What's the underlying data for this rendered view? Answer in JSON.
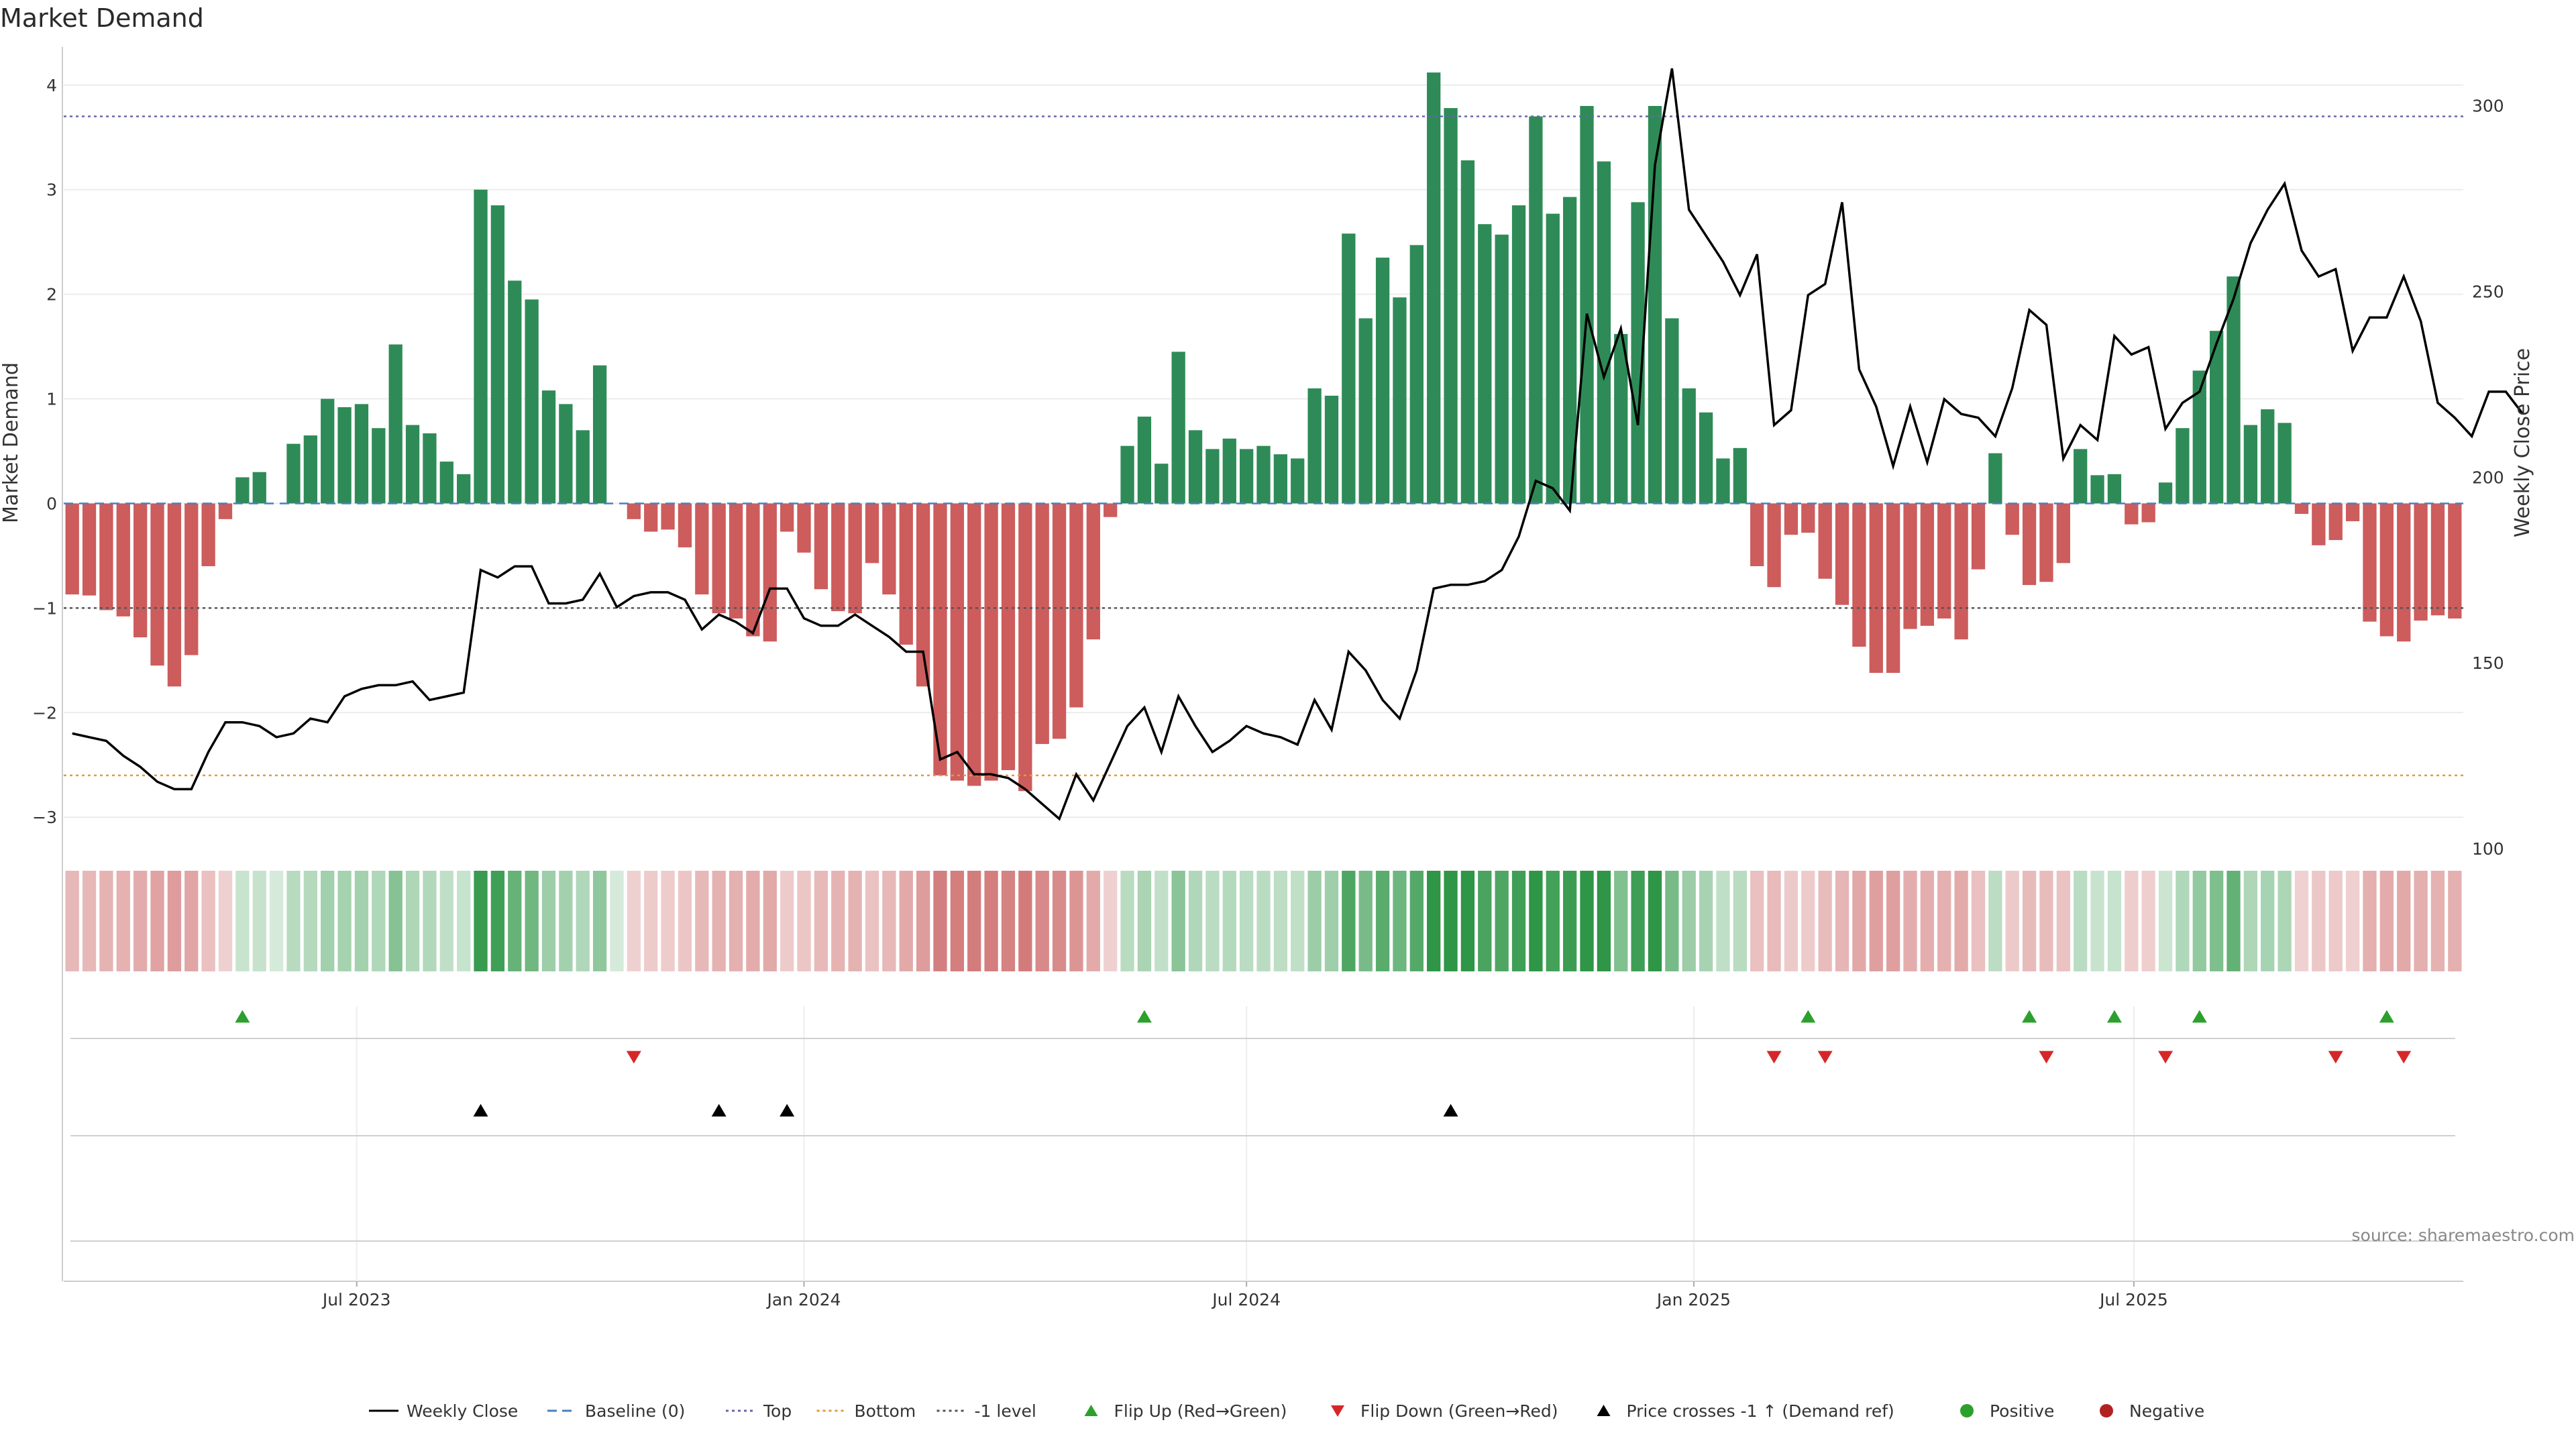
{
  "chart_data": {
    "type": "bar",
    "title": "Market Demand",
    "ylabel": "Market Demand",
    "y2label": "Weekly Close Price",
    "ylim": [
      -3.3,
      4.3
    ],
    "y2lim": [
      100,
      314
    ],
    "yticks": [
      "4",
      "3",
      "2",
      "1",
      "0",
      "−1",
      "−2",
      "−3"
    ],
    "yticks_values": [
      4,
      3,
      2,
      1,
      0,
      -1,
      -2,
      -3
    ],
    "y2ticks": [
      "300",
      "250",
      "200",
      "150",
      "100"
    ],
    "y2ticks_values": [
      300,
      250,
      200,
      150,
      100
    ],
    "x_start": "2023-03-06",
    "x_step_days": 7,
    "xticks": [
      {
        "label": "Jul 2023",
        "date": "2023-07-01"
      },
      {
        "label": "Jan 2024",
        "date": "2024-01-01"
      },
      {
        "label": "Jul 2024",
        "date": "2024-07-01"
      },
      {
        "label": "Jan 2025",
        "date": "2025-01-01"
      },
      {
        "label": "Jul 2025",
        "date": "2025-07-01"
      }
    ],
    "reference_lines": [
      {
        "name": "Top",
        "value": 3.7
      },
      {
        "name": "Bottom",
        "value": -2.6
      },
      {
        "name": "-1 level",
        "value": -1
      },
      {
        "name": "Baseline (0)",
        "value": 0
      }
    ],
    "demand": [
      -0.87,
      -0.88,
      -1.02,
      -1.08,
      -1.28,
      -1.55,
      -1.75,
      -1.45,
      -0.6,
      -0.15,
      0.25,
      0.3,
      0.0,
      0.57,
      0.65,
      1.0,
      0.92,
      0.95,
      0.72,
      1.52,
      0.75,
      0.67,
      0.4,
      0.28,
      3.0,
      2.85,
      2.13,
      1.95,
      1.08,
      0.95,
      0.7,
      1.32,
      0.0,
      -0.15,
      -0.27,
      -0.25,
      -0.42,
      -0.87,
      -1.05,
      -1.1,
      -1.27,
      -1.32,
      -0.27,
      -0.47,
      -0.82,
      -1.03,
      -1.05,
      -0.57,
      -0.87,
      -1.35,
      -1.75,
      -2.6,
      -2.65,
      -2.7,
      -2.65,
      -2.55,
      -2.75,
      -2.3,
      -2.25,
      -1.95,
      -1.3,
      -0.13,
      0.55,
      0.83,
      0.38,
      1.45,
      0.7,
      0.52,
      0.62,
      0.52,
      0.55,
      0.47,
      0.43,
      1.1,
      1.03,
      2.58,
      1.77,
      2.35,
      1.97,
      2.47,
      4.12,
      3.78,
      3.28,
      2.67,
      2.57,
      2.85,
      3.7,
      2.77,
      2.93,
      3.8,
      3.27,
      1.62,
      2.88,
      3.8,
      1.77,
      1.1,
      0.87,
      0.43,
      0.53,
      -0.6,
      -0.8,
      -0.3,
      -0.28,
      -0.72,
      -0.97,
      -1.37,
      -1.62,
      -1.62,
      -1.2,
      -1.17,
      -1.1,
      -1.3,
      -0.63,
      0.48,
      -0.3,
      -0.78,
      -0.75,
      -0.57,
      0.52,
      0.27,
      0.28,
      -0.2,
      -0.18,
      0.2,
      0.72,
      1.27,
      1.65,
      2.17,
      0.75,
      0.9,
      0.77,
      -0.1,
      -0.4,
      -0.35,
      -0.17,
      -1.13,
      -1.27,
      -1.32,
      -1.12,
      -1.07,
      -1.1
    ],
    "weekly_close": [
      131,
      130,
      129,
      125,
      122,
      118,
      116,
      116,
      126,
      134,
      134,
      133,
      130,
      131,
      135,
      134,
      141,
      143,
      144,
      144,
      145,
      140,
      141,
      142,
      175,
      173,
      176,
      176,
      166,
      166,
      167,
      174,
      165,
      168,
      169,
      169,
      167,
      159,
      163,
      161,
      158,
      170,
      170,
      162,
      160,
      160,
      163,
      160,
      157,
      153,
      153,
      124,
      126,
      120,
      120,
      119,
      116,
      112,
      108,
      120,
      113,
      123,
      133,
      138,
      126,
      141,
      133,
      126,
      129,
      133,
      131,
      130,
      128,
      140,
      132,
      153,
      148,
      140,
      135,
      148,
      170,
      171,
      171,
      172,
      175,
      184,
      199,
      197,
      191,
      244,
      227,
      240,
      214,
      284,
      310,
      272,
      265,
      258,
      249,
      260,
      214,
      218,
      249,
      252,
      274,
      229,
      219,
      203,
      219,
      204,
      221,
      217,
      216,
      211,
      224,
      245,
      241,
      205,
      214,
      210,
      238,
      233,
      235,
      213,
      220,
      223,
      236,
      248,
      263,
      272,
      279,
      261,
      254,
      256,
      234,
      243,
      243,
      254,
      242,
      220,
      216,
      211,
      223,
      223,
      217
    ],
    "heat_strip": [
      "+0.60",
      "-0.60",
      "..."
    ],
    "flip_up_weeks": [
      10,
      63,
      102,
      115,
      120,
      125,
      136
    ],
    "flip_down_weeks": [
      33,
      100,
      103,
      116,
      123,
      133,
      137
    ],
    "price_cross_weeks": [
      24,
      38,
      42,
      81
    ]
  },
  "legend": [
    {
      "label": "Weekly Close",
      "kind": "line-solid",
      "color": "#000000"
    },
    {
      "label": "Baseline (0)",
      "kind": "line-dashed",
      "color": "#4a7fc1"
    },
    {
      "label": "Top",
      "kind": "line-dotted",
      "color": "#6666aa"
    },
    {
      "label": "Bottom",
      "kind": "line-dotted",
      "color": "#e39a3b"
    },
    {
      "label": "-1 level",
      "kind": "line-dotted",
      "color": "#555555"
    },
    {
      "label": "Flip Up (Red→Green)",
      "kind": "tri-up",
      "color": "#2ca02c"
    },
    {
      "label": "Flip Down (Green→Red)",
      "kind": "tri-down",
      "color": "#d62728"
    },
    {
      "label": "Price crosses -1 ↑ (Demand ref)",
      "kind": "tri-up",
      "color": "#000000"
    },
    {
      "label": "Positive",
      "kind": "dot",
      "color": "#2ca02c"
    },
    {
      "label": "Negative",
      "kind": "dot",
      "color": "#b22222"
    }
  ],
  "source": "source: sharemaestro.com",
  "colors": {
    "positive_bar": "#2e8b57",
    "negative_bar": "#cd5c5c",
    "top_line": "#6666aa",
    "bottom_line": "#e39a3b",
    "minus1_line": "#555555",
    "baseline": "#4a7fc1",
    "price_line": "#000000"
  }
}
